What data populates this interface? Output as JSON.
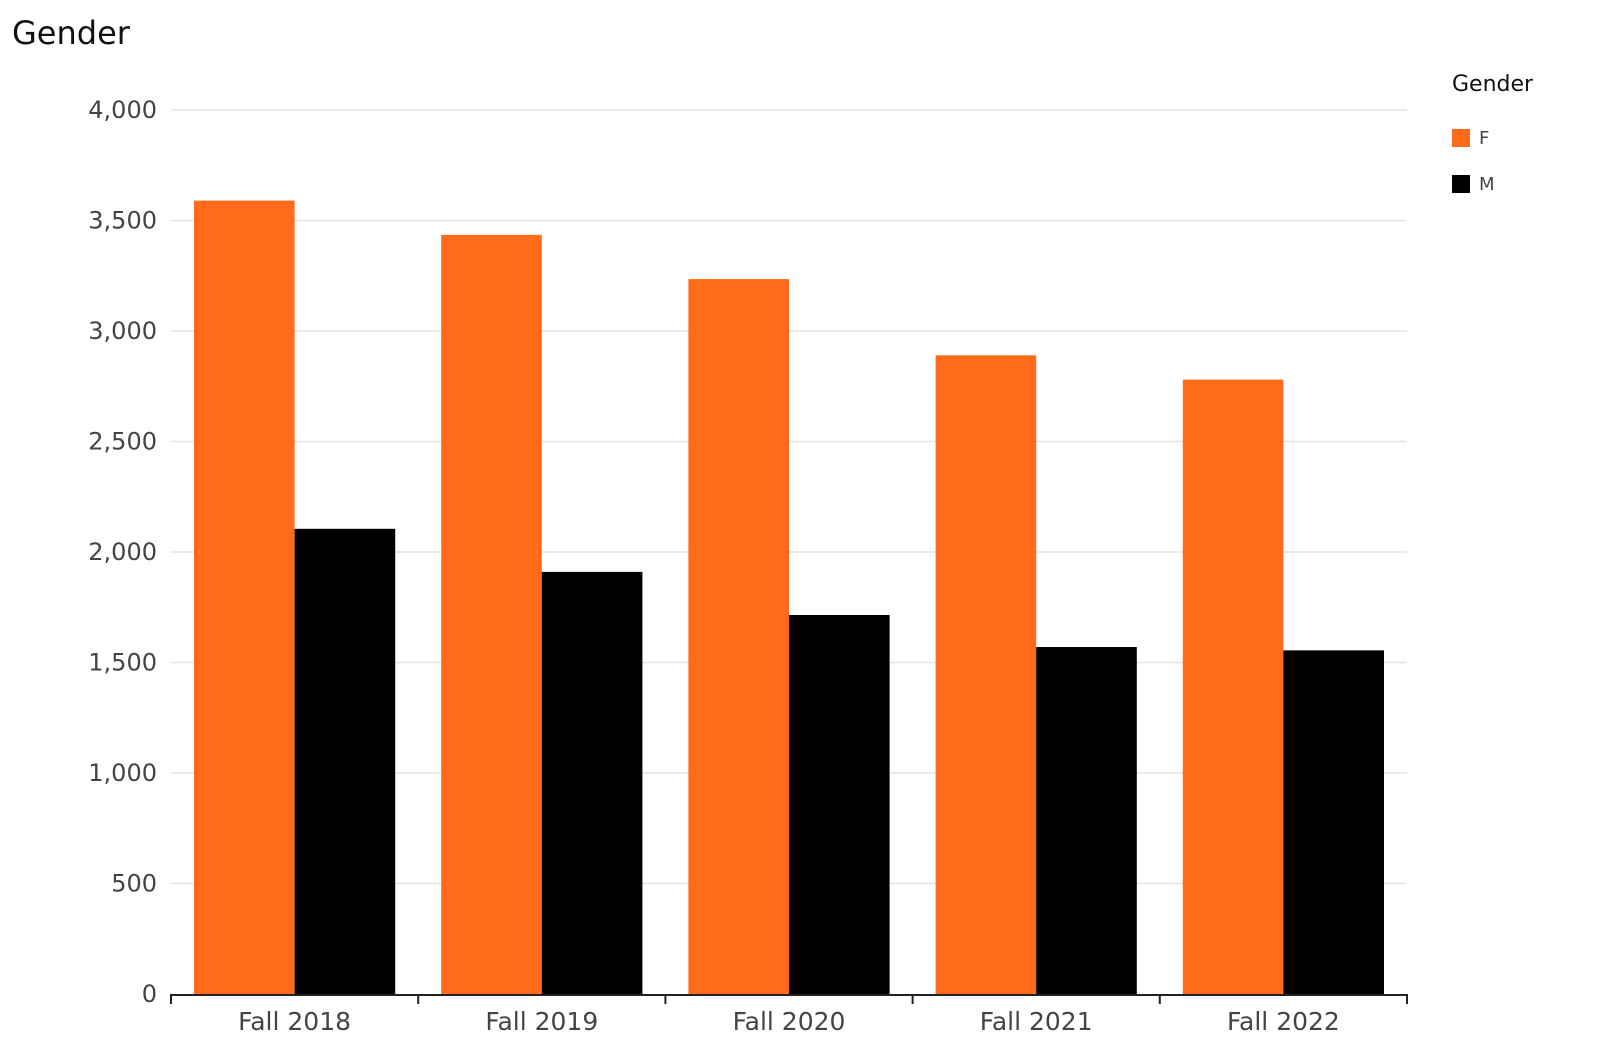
{
  "title": "Gender",
  "legend": {
    "title": "Gender",
    "items": [
      {
        "label": "F",
        "color": "#FF6B1A"
      },
      {
        "label": "M",
        "color": "#000000"
      }
    ]
  },
  "chart_data": {
    "type": "bar",
    "title": "Gender",
    "xlabel": "",
    "ylabel": "",
    "categories": [
      "Fall 2018",
      "Fall 2019",
      "Fall 2020",
      "Fall 2021",
      "Fall 2022"
    ],
    "series": [
      {
        "name": "F",
        "color": "#FF6B1A",
        "values": [
          3590,
          3435,
          3235,
          2890,
          2780
        ]
      },
      {
        "name": "M",
        "color": "#000000",
        "values": [
          2105,
          1910,
          1715,
          1570,
          1555
        ]
      }
    ],
    "ylim": [
      0,
      4000
    ],
    "yticks": [
      0,
      500,
      1000,
      1500,
      2000,
      2500,
      3000,
      3500,
      4000
    ],
    "ytick_labels": [
      "0",
      "500",
      "1,000",
      "1,500",
      "2,000",
      "2,500",
      "3,000",
      "3,500",
      "4,000"
    ],
    "grid": true,
    "legend_position": "right"
  }
}
